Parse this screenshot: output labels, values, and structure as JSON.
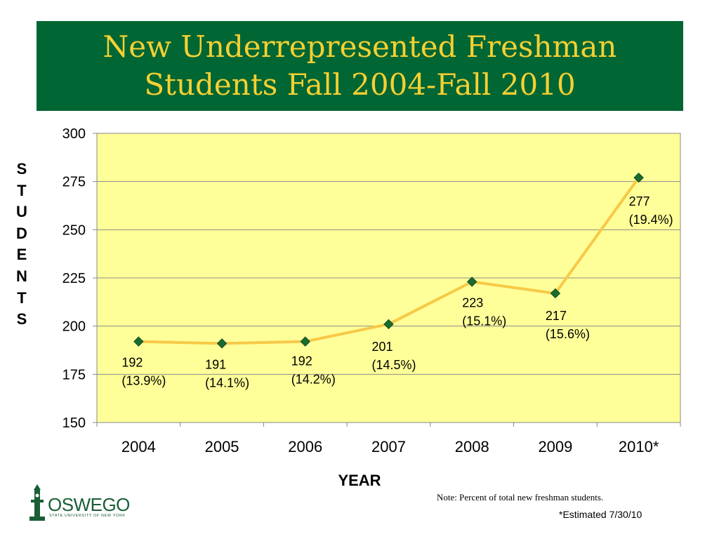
{
  "slide": {
    "title_lines": [
      "New Underrepresented Freshman",
      "Students Fall 2004-Fall 2010"
    ],
    "note": "Note:  Percent of  total new freshman students.",
    "estimated": "*Estimated 7/30/10",
    "logo": {
      "name": "OSWEGO",
      "subtitle": "STATE UNIVERSITY OF NEW YORK"
    },
    "colors": {
      "banner": "#006633",
      "title_text": "#f5d033",
      "plot_bg": "#ffff99",
      "line": "#f7c948",
      "marker": "#1a6b2f"
    }
  },
  "chart_data": {
    "type": "line",
    "title": "New Underrepresented Freshman Students Fall 2004-Fall 2010",
    "xlabel": "YEAR",
    "ylabel": "STUDENTS",
    "categories": [
      "2004",
      "2005",
      "2006",
      "2007",
      "2008",
      "2009",
      "2010*"
    ],
    "values": [
      192,
      191,
      192,
      201,
      223,
      217,
      277
    ],
    "data_labels": [
      [
        "192",
        "(13.9%)"
      ],
      [
        "191",
        "(14.1%)"
      ],
      [
        "192",
        "(14.2%)"
      ],
      [
        "201",
        "(14.5%)"
      ],
      [
        "223",
        "(15.1%)"
      ],
      [
        "217",
        "(15.6%)"
      ],
      [
        "277",
        "(19.4%)"
      ]
    ],
    "ylim": [
      150,
      300
    ],
    "yticks": [
      "150",
      "175",
      "200",
      "225",
      "250",
      "275",
      "300"
    ],
    "grid": true,
    "legend": "none"
  }
}
